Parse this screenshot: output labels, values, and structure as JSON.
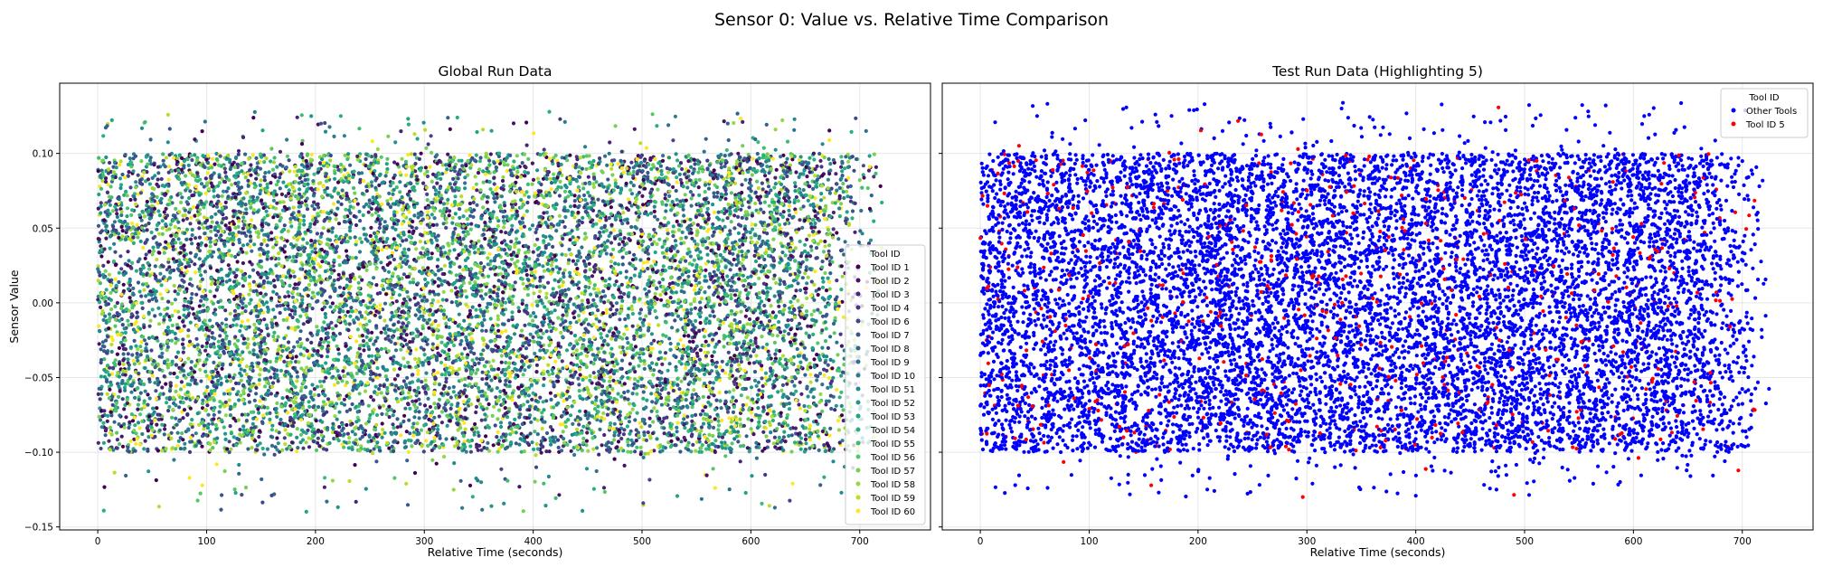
{
  "figure": {
    "suptitle": "Sensor 0: Value vs. Relative Time Comparison",
    "ylabel": "Sensor Value"
  },
  "chart_data": [
    {
      "type": "scatter",
      "title": "Global Run Data",
      "xlabel": "Relative Time (seconds)",
      "ylabel": "Sensor Value",
      "xlim": [
        -35,
        765
      ],
      "ylim": [
        -0.152,
        0.147
      ],
      "xticks": [
        0,
        100,
        200,
        300,
        400,
        500,
        600,
        700
      ],
      "yticks": [
        0.1,
        0.05,
        0.0,
        -0.05,
        -0.1,
        -0.15
      ],
      "ytick_labels": [
        "0.10",
        "0.05",
        "0.00",
        "−0.05",
        "−0.10",
        "−0.15"
      ],
      "grid": true,
      "legend": {
        "title": "Tool ID",
        "placement": "lower-right",
        "entries": [
          {
            "label": "Tool ID 1",
            "color": "#440154"
          },
          {
            "label": "Tool ID 2",
            "color": "#471365"
          },
          {
            "label": "Tool ID 3",
            "color": "#482475"
          },
          {
            "label": "Tool ID 4",
            "color": "#453781"
          },
          {
            "label": "Tool ID 6",
            "color": "#404688"
          },
          {
            "label": "Tool ID 7",
            "color": "#39558c"
          },
          {
            "label": "Tool ID 8",
            "color": "#33638d"
          },
          {
            "label": "Tool ID 9",
            "color": "#2d718e"
          },
          {
            "label": "Tool ID 10",
            "color": "#287d8e"
          },
          {
            "label": "Tool ID 51",
            "color": "#238a8d"
          },
          {
            "label": "Tool ID 52",
            "color": "#1f968b"
          },
          {
            "label": "Tool ID 53",
            "color": "#20a386"
          },
          {
            "label": "Tool ID 54",
            "color": "#29af7f"
          },
          {
            "label": "Tool ID 55",
            "color": "#3dbc74"
          },
          {
            "label": "Tool ID 56",
            "color": "#56c667"
          },
          {
            "label": "Tool ID 57",
            "color": "#75d054"
          },
          {
            "label": "Tool ID 58",
            "color": "#95d840"
          },
          {
            "label": "Tool ID 59",
            "color": "#bade28"
          },
          {
            "label": "Tool ID 60",
            "color": "#fde725"
          }
        ]
      },
      "series_description_values": {
        "x_range": [
          0,
          725
        ],
        "bulk_y_range": [
          -0.1,
          0.1
        ],
        "outlier_y_range": [
          -0.14,
          0.128
        ]
      }
    },
    {
      "type": "scatter",
      "title": "Test Run Data (Highlighting 5)",
      "xlabel": "Relative Time (seconds)",
      "xlim": [
        -35,
        765
      ],
      "ylim": [
        -0.152,
        0.147
      ],
      "xticks": [
        0,
        100,
        200,
        300,
        400,
        500,
        600,
        700
      ],
      "grid": true,
      "legend": {
        "title": "Tool ID",
        "placement": "upper-right",
        "entries": [
          {
            "label": "Other Tools",
            "color": "#0000ff"
          },
          {
            "label": "Tool ID 5",
            "color": "#ff0000"
          }
        ]
      },
      "series_description_values": {
        "x_range": [
          0,
          725
        ],
        "bulk_y_range": [
          -0.1,
          0.1
        ],
        "outlier_y_range": [
          -0.13,
          0.134
        ]
      }
    }
  ]
}
